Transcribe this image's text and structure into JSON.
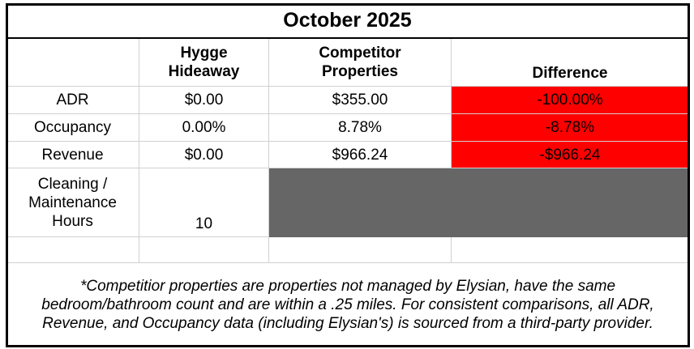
{
  "header": {
    "title": "October 2025"
  },
  "table": {
    "columns": [
      "Hygge Hideaway",
      "Competitor Properties",
      "Difference"
    ],
    "rows": [
      [
        "ADR",
        "$0.00",
        "$355.00",
        "-100.00%"
      ],
      [
        "Occupancy",
        "0.00%",
        "8.78%",
        "-8.78%"
      ],
      [
        "Revenue",
        "$0.00",
        "$966.24",
        "-$966.24"
      ],
      [
        "Cleaning / Maintenance Hours",
        "10"
      ]
    ]
  },
  "footnote": "*Competitior properties are properties not managed by Elysian, have the same bedroom/bathroom count and are within a .25 miles. For consistent comparisons, all ADR, Revenue, and Occupancy data (including Elysian's) is sourced from a third-party provider."
}
